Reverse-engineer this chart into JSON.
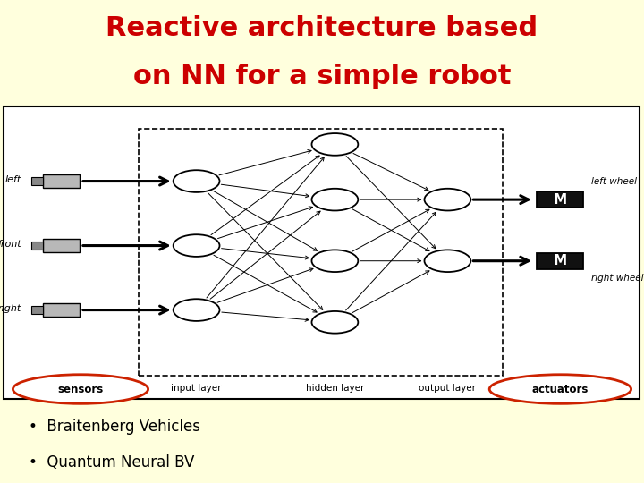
{
  "title_line1": "Reactive architecture based",
  "title_line2": "on NN for a simple robot",
  "title_color": "#cc0000",
  "title_bg": "#ffffdd",
  "title_fontsize": 22,
  "bullet_items": [
    "Braitenberg Vehicles",
    "Quantum Neural BV"
  ],
  "bullet_fontsize": 12,
  "bullet_bg": "#ffffdd",
  "main_bg": "#ffffff",
  "sensor_labels": [
    "left",
    "front",
    "right"
  ],
  "layer_labels": [
    "input layer",
    "hidden layer",
    "output layer"
  ],
  "bottom_labels": [
    "sensors",
    "actuators"
  ],
  "right_labels": [
    "left wheel",
    "right wheel"
  ],
  "ellipse_color": "#cc2200",
  "node_color": "#ffffff",
  "sensor_color": "#bbbbbb",
  "motor_color": "#111111"
}
